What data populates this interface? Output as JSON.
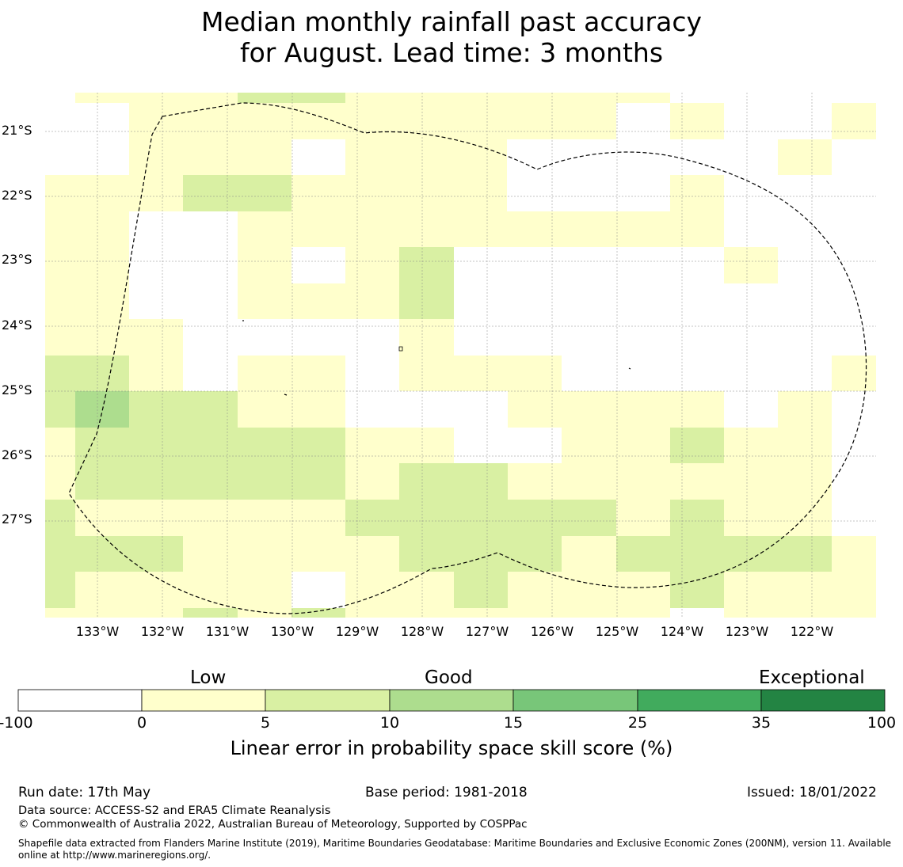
{
  "title": {
    "line1": "Median monthly rainfall past accuracy",
    "line2": "for August. Lead time: 3 months"
  },
  "map": {
    "lat_labels": [
      "21°S",
      "22°S",
      "23°S",
      "24°S",
      "25°S",
      "26°S",
      "27°S"
    ],
    "lon_labels": [
      "133°W",
      "132°W",
      "131°W",
      "130°W",
      "129°W",
      "128°W",
      "127°W",
      "126°W",
      "125°W",
      "124°W",
      "123°W",
      "122°W"
    ],
    "colors": {
      "class0": "#ffffff",
      "class1": "#ffffcc",
      "class2": "#d9f0a3",
      "class3": "#addd8e",
      "class4": "#78c679",
      "class5": "#41ab5d",
      "class6": "#238443"
    }
  },
  "colorbar": {
    "categories": [
      "Low",
      "Good",
      "Exceptional"
    ],
    "ticks": [
      "-100",
      "0",
      "5",
      "10",
      "15",
      "25",
      "35",
      "100"
    ],
    "label": "Linear error in probability space skill score (%)"
  },
  "footer": {
    "run_date": "Run date: 17th May",
    "base_period": "Base period: 1981-2018",
    "issued": "Issued: 18/01/2022",
    "data_source": "Data source: ACCESS-S2 and ERA5 Climate Reanalysis",
    "copyright": "© Commonwealth of Australia 2022, Australian Bureau of Meteorology, Supported by COSPPac",
    "shapefile_line1": "Shapefile data extracted from Flanders Marine Institute (2019), Maritime Boundaries Geodatabase: Maritime Boundaries and Exclusive Economic Zones (200NM), version 11. Available",
    "shapefile_line2": "online at http://www.marineregions.org/."
  }
}
